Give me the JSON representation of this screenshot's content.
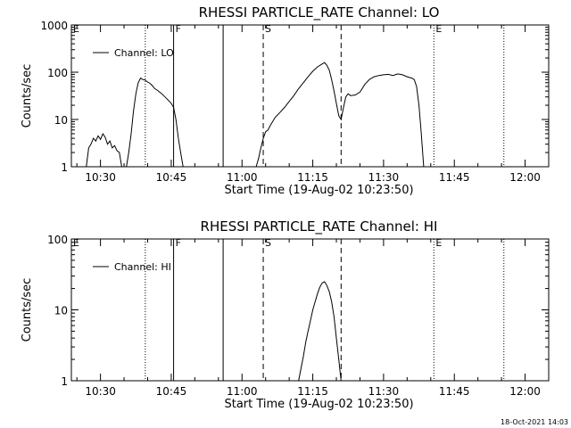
{
  "footer": {
    "timestamp": "18-Oct-2021 14:03"
  },
  "chart_data": [
    {
      "type": "line",
      "title": "RHESSI PARTICLE_RATE Channel: LO",
      "xlabel": "Start Time (19-Aug-02 10:23:50)",
      "ylabel": "Counts/sec",
      "yscale": "log",
      "ylim": [
        1,
        1000
      ],
      "xlim": [
        "10:23:50",
        "12:05:00"
      ],
      "x_ticks": [
        "10:30",
        "10:45",
        "11:00",
        "11:15",
        "11:30",
        "11:45",
        "12:00"
      ],
      "y_ticks": [
        "1",
        "10",
        "100",
        "1000"
      ],
      "legend": {
        "entries": [
          "Channel: LO"
        ],
        "position": "top-left"
      },
      "markers": [
        {
          "label": "E",
          "time": "10:23:50",
          "style": "dotted"
        },
        {
          "label": "",
          "time": "10:39:30",
          "style": "dotted"
        },
        {
          "label": "F",
          "time": "10:45:30",
          "style": "solid"
        },
        {
          "label": "",
          "time": "10:56:00",
          "style": "solid"
        },
        {
          "label": "S",
          "time": "11:04:30",
          "style": "dashed"
        },
        {
          "label": "",
          "time": "11:21:00",
          "style": "dashed"
        },
        {
          "label": "E",
          "time": "11:40:40",
          "style": "dotted"
        },
        {
          "label": "",
          "time": "11:55:30",
          "style": "dotted"
        }
      ],
      "series": [
        {
          "name": "Channel: LO",
          "segments": [
            [
              [
                "10:27:00",
                1
              ],
              [
                "10:27:30",
                2.5
              ],
              [
                "10:28:00",
                3
              ],
              [
                "10:28:30",
                4
              ],
              [
                "10:29:00",
                3.5
              ],
              [
                "10:29:30",
                4.5
              ],
              [
                "10:30:00",
                3.8
              ],
              [
                "10:30:30",
                5
              ],
              [
                "10:31:00",
                4.2
              ],
              [
                "10:31:30",
                3
              ],
              [
                "10:32:00",
                3.5
              ],
              [
                "10:32:30",
                2.5
              ],
              [
                "10:33:00",
                2.8
              ],
              [
                "10:33:30",
                2.2
              ],
              [
                "10:34:00",
                2
              ],
              [
                "10:34:30",
                1
              ]
            ],
            [
              [
                "10:35:30",
                1
              ],
              [
                "10:36:00",
                2
              ],
              [
                "10:36:30",
                5
              ],
              [
                "10:37:00",
                15
              ],
              [
                "10:37:30",
                35
              ],
              [
                "10:38:00",
                60
              ],
              [
                "10:38:30",
                75
              ],
              [
                "10:39:00",
                70
              ],
              [
                "10:39:30",
                68
              ],
              [
                "10:40:00",
                62
              ],
              [
                "10:40:30",
                58
              ],
              [
                "10:41:00",
                52
              ],
              [
                "10:41:30",
                45
              ],
              [
                "10:42:00",
                42
              ],
              [
                "10:43:00",
                35
              ],
              [
                "10:44:00",
                28
              ],
              [
                "10:45:00",
                22
              ],
              [
                "10:45:30",
                18
              ],
              [
                "10:46:00",
                10
              ],
              [
                "10:46:30",
                4
              ],
              [
                "10:47:00",
                2
              ],
              [
                "10:47:30",
                1
              ]
            ],
            [
              [
                "11:03:00",
                1
              ],
              [
                "11:03:30",
                1.5
              ],
              [
                "11:04:00",
                2.5
              ],
              [
                "11:04:30",
                4
              ],
              [
                "11:05:00",
                5.5
              ],
              [
                "11:05:30",
                6
              ],
              [
                "11:06:00",
                7.5
              ],
              [
                "11:06:30",
                9
              ],
              [
                "11:07:00",
                11
              ],
              [
                "11:08:00",
                14
              ],
              [
                "11:09:00",
                18
              ],
              [
                "11:10:00",
                24
              ],
              [
                "11:11:00",
                32
              ],
              [
                "11:12:00",
                45
              ],
              [
                "11:13:00",
                60
              ],
              [
                "11:14:00",
                80
              ],
              [
                "11:15:00",
                105
              ],
              [
                "11:16:00",
                130
              ],
              [
                "11:17:00",
                150
              ],
              [
                "11:17:30",
                160
              ],
              [
                "11:18:00",
                140
              ],
              [
                "11:18:30",
                110
              ],
              [
                "11:19:00",
                70
              ],
              [
                "11:19:30",
                40
              ],
              [
                "11:20:00",
                22
              ],
              [
                "11:20:30",
                12
              ],
              [
                "11:21:00",
                10
              ],
              [
                "11:21:30",
                18
              ],
              [
                "11:22:00",
                30
              ],
              [
                "11:22:30",
                35
              ],
              [
                "11:23:00",
                32
              ],
              [
                "11:24:00",
                33
              ],
              [
                "11:25:00",
                38
              ],
              [
                "11:26:00",
                55
              ],
              [
                "11:27:00",
                70
              ],
              [
                "11:28:00",
                80
              ],
              [
                "11:29:00",
                85
              ],
              [
                "11:30:00",
                88
              ],
              [
                "11:31:00",
                90
              ],
              [
                "11:32:00",
                85
              ],
              [
                "11:33:00",
                92
              ],
              [
                "11:34:00",
                88
              ],
              [
                "11:35:00",
                80
              ],
              [
                "11:36:00",
                75
              ],
              [
                "11:36:30",
                70
              ],
              [
                "11:37:00",
                50
              ],
              [
                "11:37:30",
                20
              ],
              [
                "11:38:00",
                5
              ],
              [
                "11:38:30",
                1
              ]
            ]
          ]
        }
      ]
    },
    {
      "type": "line",
      "title": "RHESSI PARTICLE_RATE Channel: HI",
      "xlabel": "Start Time (19-Aug-02 10:23:50)",
      "ylabel": "Counts/sec",
      "yscale": "log",
      "ylim": [
        1,
        100
      ],
      "xlim": [
        "10:23:50",
        "12:05:00"
      ],
      "x_ticks": [
        "10:30",
        "10:45",
        "11:00",
        "11:15",
        "11:30",
        "11:45",
        "12:00"
      ],
      "y_ticks": [
        "1",
        "10",
        "100"
      ],
      "legend": {
        "entries": [
          "Channel: HI"
        ],
        "position": "top-left"
      },
      "markers": [
        {
          "label": "E",
          "time": "10:23:50",
          "style": "dotted"
        },
        {
          "label": "",
          "time": "10:39:30",
          "style": "dotted"
        },
        {
          "label": "F",
          "time": "10:45:30",
          "style": "solid"
        },
        {
          "label": "",
          "time": "10:56:00",
          "style": "solid"
        },
        {
          "label": "S",
          "time": "11:04:30",
          "style": "dashed"
        },
        {
          "label": "",
          "time": "11:21:00",
          "style": "dashed"
        },
        {
          "label": "E",
          "time": "11:40:40",
          "style": "dotted"
        },
        {
          "label": "",
          "time": "11:55:30",
          "style": "dotted"
        }
      ],
      "series": [
        {
          "name": "Channel: HI",
          "segments": [
            [
              [
                "11:12:00",
                1
              ],
              [
                "11:12:30",
                1.5
              ],
              [
                "11:13:00",
                2.2
              ],
              [
                "11:13:30",
                3.5
              ],
              [
                "11:14:00",
                5
              ],
              [
                "11:14:30",
                7
              ],
              [
                "11:15:00",
                10
              ],
              [
                "11:15:30",
                13
              ],
              [
                "11:16:00",
                17
              ],
              [
                "11:16:30",
                21
              ],
              [
                "11:17:00",
                24
              ],
              [
                "11:17:30",
                25
              ],
              [
                "11:18:00",
                22
              ],
              [
                "11:18:30",
                18
              ],
              [
                "11:19:00",
                13
              ],
              [
                "11:19:30",
                8
              ],
              [
                "11:20:00",
                4
              ],
              [
                "11:20:30",
                2
              ],
              [
                "11:21:00",
                1
              ]
            ]
          ]
        }
      ]
    }
  ]
}
